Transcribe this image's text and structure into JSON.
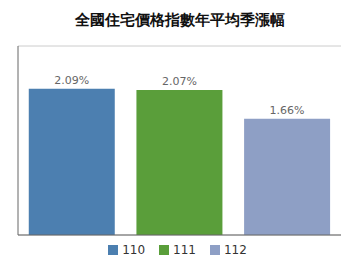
{
  "chart_data": {
    "type": "bar",
    "title": "全國住宅價格指數年平均季漲幅",
    "categories": [
      "110",
      "111",
      "112"
    ],
    "values": [
      2.09,
      2.07,
      1.66
    ],
    "value_labels": [
      "2.09%",
      "2.07%",
      "1.66%"
    ],
    "colors": [
      "#4C7FB0",
      "#5A9E3A",
      "#8E9FC5"
    ],
    "ylim": [
      0,
      2.7
    ],
    "yticks": [
      0.5,
      1.0,
      1.5,
      2.0,
      2.5
    ],
    "grid": true,
    "legend": "bottom",
    "data_labels": true,
    "tick_labels": false
  }
}
